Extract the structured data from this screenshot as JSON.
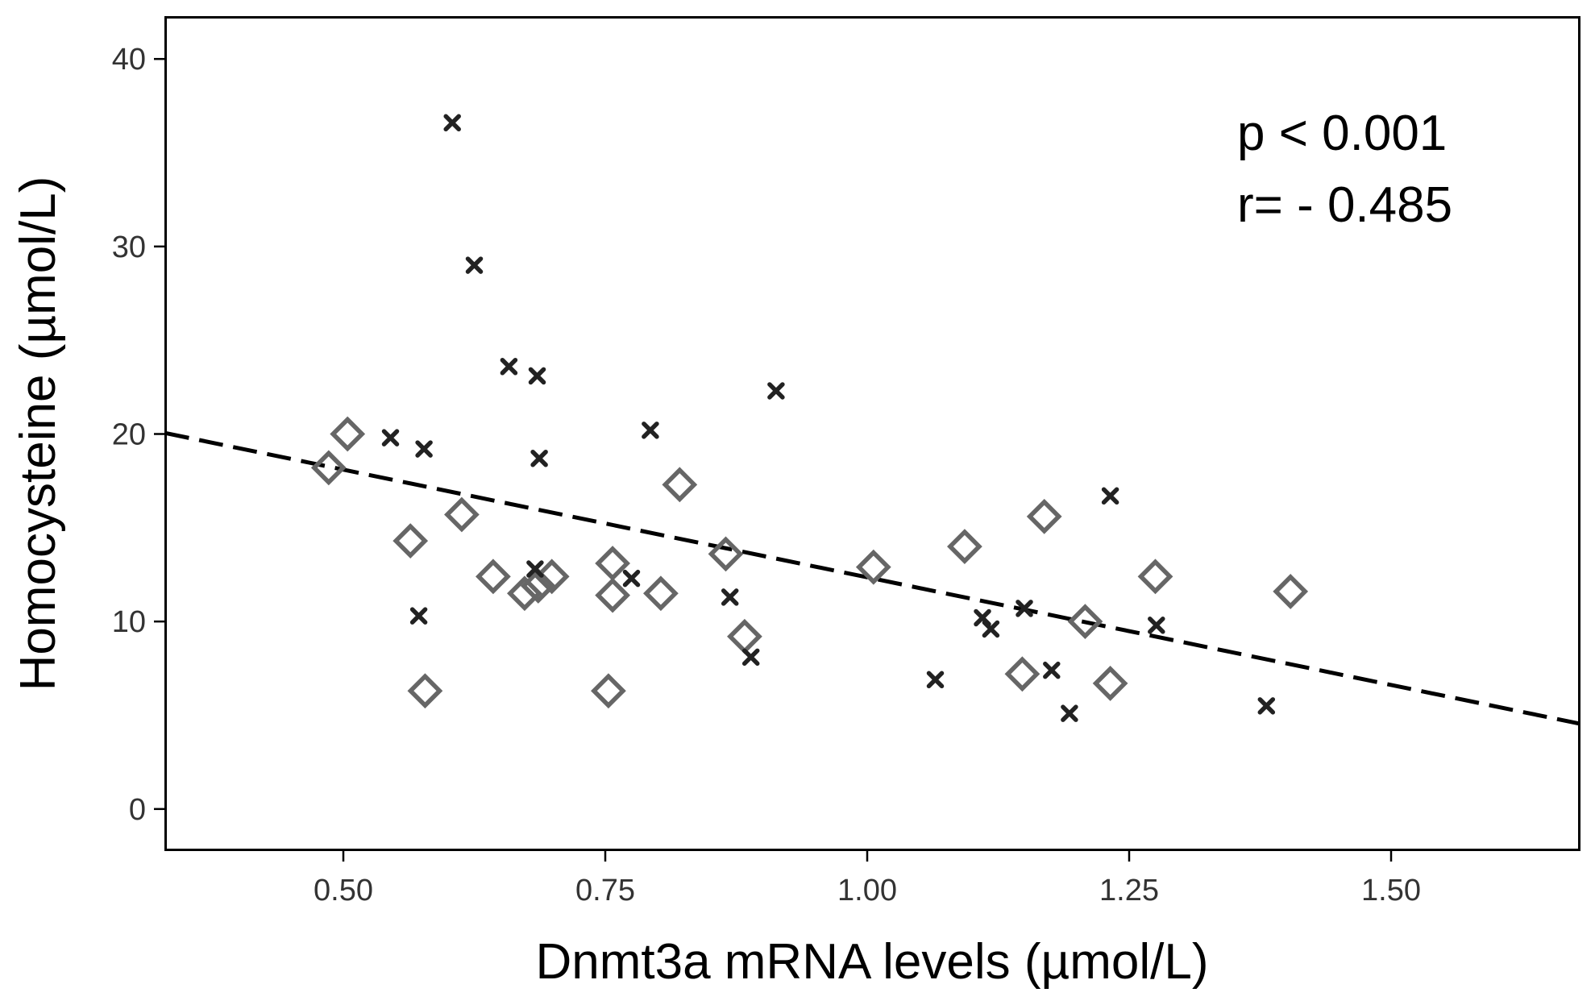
{
  "chart_data": {
    "type": "scatter",
    "title": "",
    "xlabel": "Dnmt3a mRNA levels (µmol/L)",
    "ylabel": "Homocysteine (µmol/L)",
    "xlim": [
      0.33,
      1.68
    ],
    "ylim": [
      -2.2,
      42.2
    ],
    "x_ticks": [
      {
        "value": 0.5,
        "label": "0.50"
      },
      {
        "value": 0.75,
        "label": "0.75"
      },
      {
        "value": 1.0,
        "label": "1.00"
      },
      {
        "value": 1.25,
        "label": "1.25"
      },
      {
        "value": 1.5,
        "label": "1.50"
      }
    ],
    "y_ticks": [
      {
        "value": 0,
        "label": "0"
      },
      {
        "value": 10,
        "label": "10"
      },
      {
        "value": 20,
        "label": "20"
      },
      {
        "value": 30,
        "label": "30"
      },
      {
        "value": 40,
        "label": "40"
      }
    ],
    "grid": false,
    "legend": "none",
    "annotations": [
      {
        "text": "p < 0.001",
        "position": "top-right"
      },
      {
        "text": "r= - 0.485",
        "position": "top-right"
      }
    ],
    "series": [
      {
        "name": "cross",
        "marker": "x",
        "color": "#222222",
        "points": [
          [
            0.604,
            36.6
          ],
          [
            0.625,
            29.0
          ],
          [
            0.658,
            23.6
          ],
          [
            0.685,
            23.1
          ],
          [
            0.545,
            19.8
          ],
          [
            0.577,
            19.2
          ],
          [
            0.687,
            18.7
          ],
          [
            0.793,
            20.2
          ],
          [
            0.913,
            22.3
          ],
          [
            0.572,
            10.3
          ],
          [
            0.683,
            12.8
          ],
          [
            0.775,
            12.3
          ],
          [
            0.869,
            11.3
          ],
          [
            0.889,
            8.1
          ],
          [
            1.065,
            6.9
          ],
          [
            1.11,
            10.2
          ],
          [
            1.118,
            9.6
          ],
          [
            1.15,
            10.7
          ],
          [
            1.176,
            7.4
          ],
          [
            1.193,
            5.1
          ],
          [
            1.232,
            16.7
          ],
          [
            1.276,
            9.8
          ],
          [
            1.381,
            5.5
          ]
        ]
      },
      {
        "name": "diamond",
        "marker": "diamond",
        "color": "#666666",
        "points": [
          [
            0.486,
            18.2
          ],
          [
            0.504,
            20.0
          ],
          [
            0.564,
            14.3
          ],
          [
            0.578,
            6.3
          ],
          [
            0.613,
            15.7
          ],
          [
            0.643,
            12.4
          ],
          [
            0.673,
            11.5
          ],
          [
            0.686,
            11.9
          ],
          [
            0.699,
            12.4
          ],
          [
            0.753,
            6.3
          ],
          [
            0.757,
            13.1
          ],
          [
            0.757,
            11.4
          ],
          [
            0.803,
            11.5
          ],
          [
            0.821,
            17.3
          ],
          [
            0.865,
            13.6
          ],
          [
            0.883,
            9.2
          ],
          [
            1.006,
            12.9
          ],
          [
            1.093,
            14.0
          ],
          [
            1.148,
            7.2
          ],
          [
            1.169,
            15.6
          ],
          [
            1.208,
            10.0
          ],
          [
            1.232,
            6.7
          ],
          [
            1.275,
            12.4
          ],
          [
            1.404,
            11.6
          ]
        ]
      }
    ],
    "regression_line": {
      "style": "dashed",
      "color": "#000000",
      "x": [
        0.33,
        1.68
      ],
      "y": [
        20.05,
        4.55
      ]
    }
  }
}
